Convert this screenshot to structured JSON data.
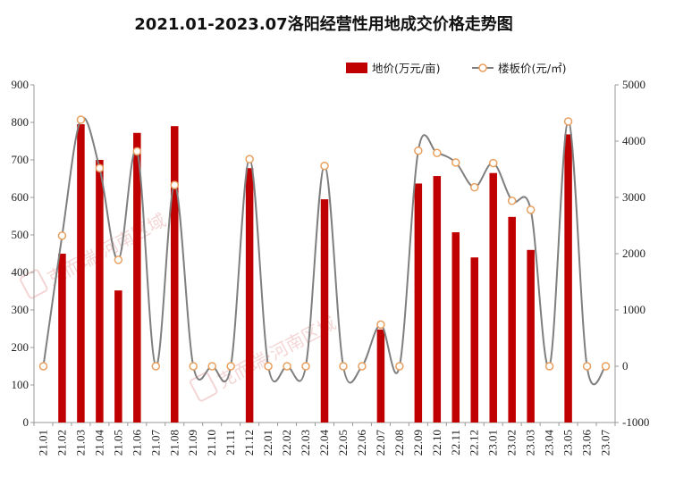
{
  "chart_data": {
    "type": "bar+line",
    "title": "2021.01-2023.07洛阳经营性用地成交价格走势图",
    "categories": [
      "21.01",
      "21.02",
      "21.03",
      "21.04",
      "21.05",
      "21.06",
      "21.07",
      "21.08",
      "21.09",
      "21.10",
      "21.11",
      "21.12",
      "22.01",
      "22.02",
      "22.03",
      "22.04",
      "22.05",
      "22.06",
      "22.07",
      "22.08",
      "22.09",
      "22.10",
      "22.11",
      "22.12",
      "23.01",
      "23.02",
      "23.03",
      "23.04",
      "23.05",
      "23.06",
      "23.07"
    ],
    "series": [
      {
        "name": "地价(万元/亩)",
        "type": "bar",
        "axis": "left",
        "color": "#C00000",
        "values": [
          0,
          450,
          795,
          700,
          352,
          772,
          0,
          790,
          0,
          0,
          0,
          678,
          0,
          0,
          0,
          595,
          0,
          0,
          248,
          0,
          637,
          657,
          507,
          440,
          665,
          548,
          460,
          0,
          768,
          0,
          0
        ]
      },
      {
        "name": "楼板价(元/㎡)",
        "type": "line",
        "axis": "right",
        "color": "#7F7F7F",
        "marker_color": "#E8A060",
        "values": [
          0,
          2320,
          4380,
          3520,
          1890,
          3820,
          0,
          3220,
          0,
          0,
          0,
          3680,
          0,
          0,
          0,
          3560,
          0,
          0,
          740,
          0,
          3830,
          3790,
          3620,
          3180,
          3610,
          2940,
          2780,
          0,
          4350,
          0,
          0
        ]
      }
    ],
    "y_left": {
      "min": 0,
      "max": 900,
      "step": 100
    },
    "y_right": {
      "min": -1000,
      "max": 5000,
      "step": 1000
    },
    "grid": false,
    "legend_position": "top-right",
    "watermark": "克而瑞·河南区域"
  }
}
